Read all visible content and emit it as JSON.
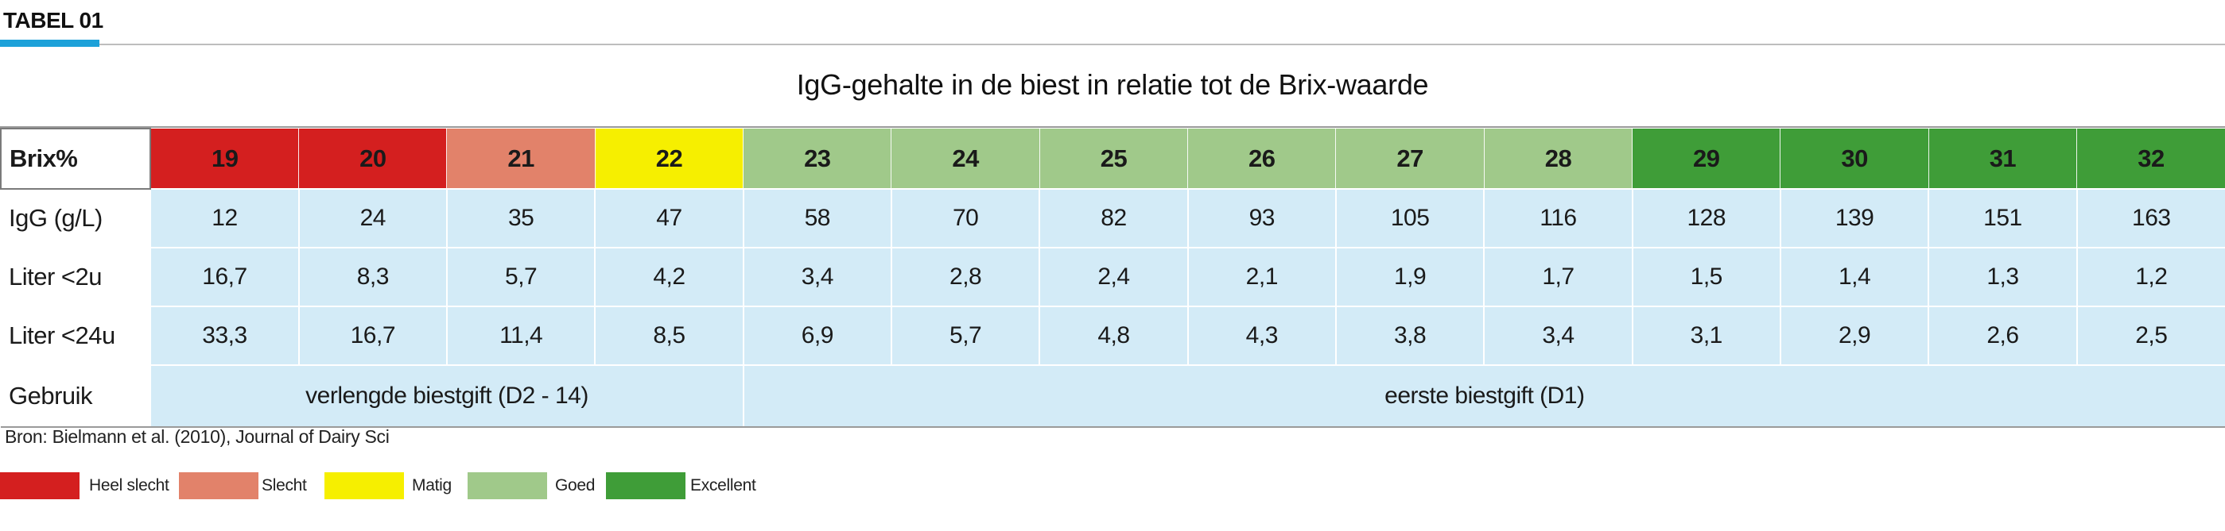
{
  "header": {
    "label": "TABEL 01",
    "accent_color": "#1da1d9"
  },
  "table": {
    "title": "IgG-gehalte in de biest in relatie tot de Brix-waarde",
    "brix_label": "Brix%",
    "brix_values": [
      "19",
      "20",
      "21",
      "22",
      "23",
      "24",
      "25",
      "26",
      "27",
      "28",
      "29",
      "30",
      "31",
      "32"
    ],
    "brix_colors": [
      "#d41f1f",
      "#d41f1f",
      "#e2826a",
      "#f6ef00",
      "#a0c98a",
      "#a0c98a",
      "#a0c98a",
      "#a0c98a",
      "#a0c98a",
      "#a0c98a",
      "#3f9d38",
      "#3f9d38",
      "#3f9d38",
      "#3f9d38"
    ],
    "rows": [
      {
        "label": "IgG (g/L)",
        "values": [
          "12",
          "24",
          "35",
          "47",
          "58",
          "70",
          "82",
          "93",
          "105",
          "116",
          "128",
          "139",
          "151",
          "163"
        ]
      },
      {
        "label": "Liter <2u",
        "values": [
          "16,7",
          "8,3",
          "5,7",
          "4,2",
          "3,4",
          "2,8",
          "2,4",
          "2,1",
          "1,9",
          "1,7",
          "1,5",
          "1,4",
          "1,3",
          "1,2"
        ]
      },
      {
        "label": "Liter <24u",
        "values": [
          "33,3",
          "16,7",
          "11,4",
          "8,5",
          "6,9",
          "5,7",
          "4,8",
          "4,3",
          "3,8",
          "3,4",
          "3,1",
          "2,9",
          "2,6",
          "2,5"
        ]
      }
    ],
    "usage": {
      "label": "Gebruik",
      "extended": "verlengde biestgift (D2 - 14)",
      "first": "eerste biestgift (D1)"
    },
    "body_color": "#d3ebf7"
  },
  "source": "Bron: Bielmann et al. (2010), Journal of Dairy Sci",
  "legend": [
    {
      "label": "Heel slecht",
      "color": "#d41f1f"
    },
    {
      "label": "Slecht",
      "color": "#e2826a"
    },
    {
      "label": "Matig",
      "color": "#f6ef00"
    },
    {
      "label": "Goed",
      "color": "#a0c98a"
    },
    {
      "label": "Excellent",
      "color": "#3f9d38"
    }
  ]
}
